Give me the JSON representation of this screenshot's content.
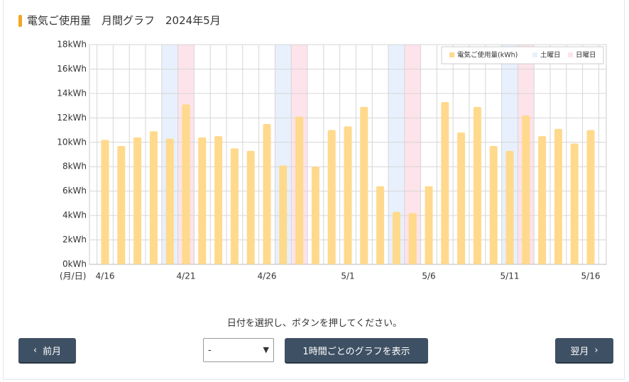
{
  "header": {
    "title": "電気ご使用量　月間グラフ　2024年5月"
  },
  "chart_data": {
    "type": "bar",
    "x_label": "(月/日)",
    "categories": [
      "4/16",
      null,
      null,
      null,
      null,
      "4/21",
      null,
      null,
      null,
      null,
      "4/26",
      null,
      null,
      null,
      null,
      "5/1",
      null,
      null,
      null,
      null,
      "5/6",
      null,
      null,
      null,
      null,
      "5/11",
      null,
      null,
      null,
      null,
      "5/16"
    ],
    "series": [
      {
        "name": "電気ご使用量(kWh)",
        "color": "#ffd98c",
        "values": [
          10.2,
          9.7,
          10.4,
          10.9,
          10.3,
          13.1,
          10.4,
          10.5,
          9.5,
          9.3,
          11.5,
          8.1,
          12.1,
          8.0,
          11.0,
          11.3,
          12.9,
          6.4,
          4.3,
          4.2,
          6.4,
          13.3,
          10.8,
          12.9,
          9.7,
          9.3,
          12.2,
          10.5,
          11.1,
          9.9,
          11.0
        ]
      },
      {
        "name": "土曜日",
        "color": "#e8f0fd",
        "highlight": [
          4,
          11,
          18,
          25
        ]
      },
      {
        "name": "日曜日",
        "color": "#fde3ea",
        "highlight": [
          5,
          12,
          19,
          26
        ]
      }
    ],
    "ylim": [
      0,
      18
    ],
    "yticks": [
      {
        "value": 0,
        "label": "0kWh"
      },
      {
        "value": 2,
        "label": "2kWh"
      },
      {
        "value": 4,
        "label": "4kWh"
      },
      {
        "value": 6,
        "label": "6kWh"
      },
      {
        "value": 8,
        "label": "8kWh"
      },
      {
        "value": 10,
        "label": "10kWh"
      },
      {
        "value": 12,
        "label": "12kWh"
      },
      {
        "value": 14,
        "label": "14kWh"
      },
      {
        "value": 16,
        "label": "16kWh"
      },
      {
        "value": 18,
        "label": "18kWh"
      }
    ],
    "grid": true,
    "legend": "top-right"
  },
  "controls": {
    "instruction": "日付を選択し、ボタンを押してください。",
    "prev": "前月",
    "select": "-",
    "show": "1時間ごとのグラフを表示",
    "next": "翌月"
  }
}
